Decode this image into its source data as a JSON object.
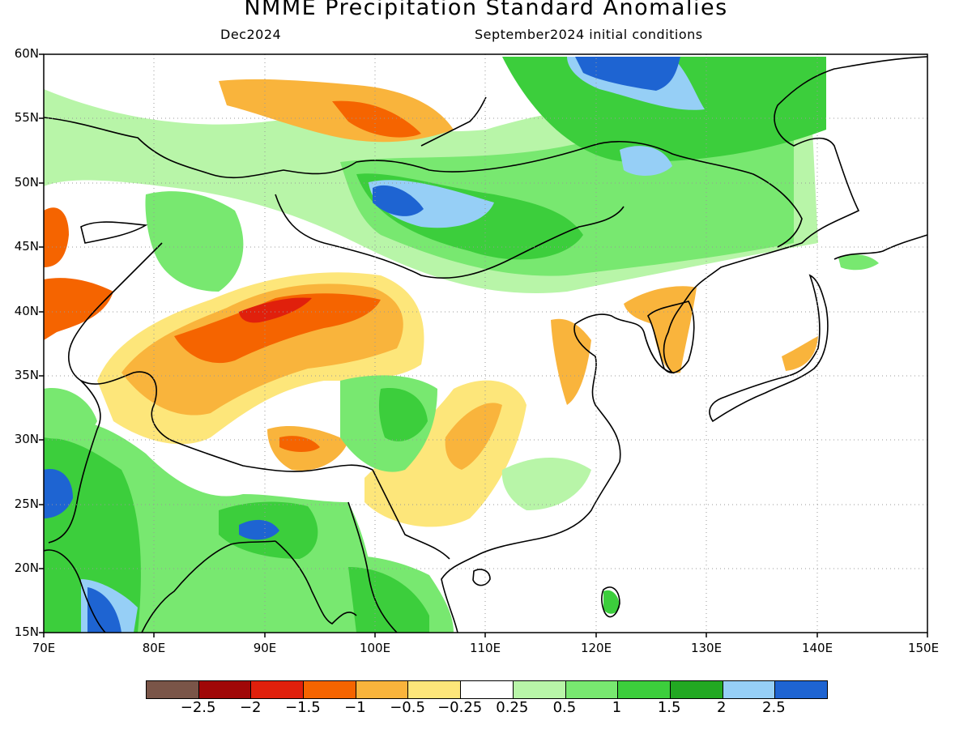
{
  "title": "NMME Precipitation Standard Anomalies",
  "subtitle_left": "Dec2024",
  "subtitle_right": "September2024 initial conditions",
  "lat_labels": [
    "60N",
    "55N",
    "50N",
    "45N",
    "40N",
    "35N",
    "30N",
    "25N",
    "20N",
    "15N"
  ],
  "lon_labels": [
    "70E",
    "80E",
    "90E",
    "100E",
    "110E",
    "120E",
    "130E",
    "140E",
    "150E"
  ],
  "colorbar": {
    "colors": [
      "#7a5548",
      "#a00808",
      "#e0200c",
      "#f56400",
      "#f9b43c",
      "#fde67a",
      "#ffffff",
      "#b8f5a8",
      "#78e870",
      "#3cce3c",
      "#22a822",
      "#96cff6",
      "#1e64d2"
    ],
    "labels": [
      "−2.5",
      "−2",
      "−1.5",
      "−1",
      "−0.5",
      "−0.25",
      "0.25",
      "0.5",
      "1",
      "1.5",
      "2",
      "2.5"
    ]
  }
}
